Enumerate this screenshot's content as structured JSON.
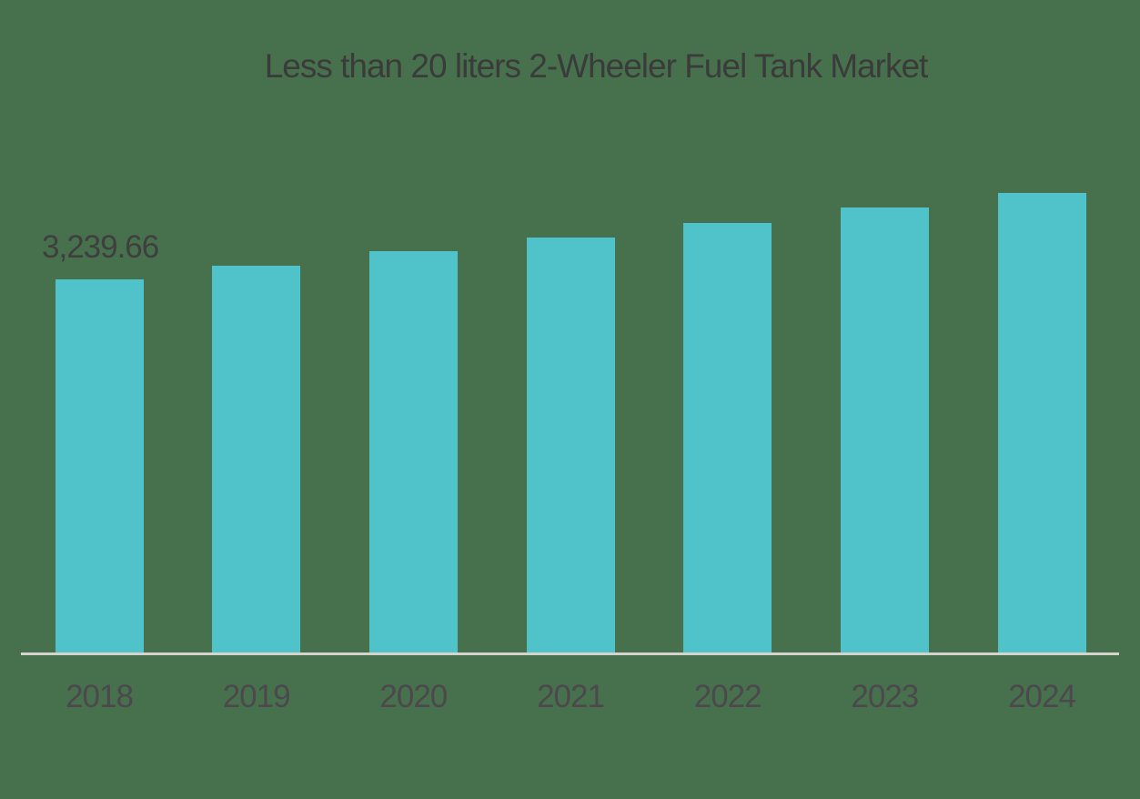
{
  "title": "Less than 20 liters 2-Wheeler Fuel Tank Market",
  "colors": {
    "background": "#47704d",
    "bar": "#50c2c9",
    "title_text": "#3b3b3b",
    "value_label_text": "#3f3f3f",
    "tick_text": "#4c484d",
    "axis_line": "#d5d4cc"
  },
  "chart_data": {
    "type": "bar",
    "title": "Less than 20 liters 2-Wheeler Fuel Tank Market",
    "xlabel": "",
    "ylabel": "",
    "categories": [
      "2018",
      "2019",
      "2020",
      "2021",
      "2022",
      "2023",
      "2024"
    ],
    "values": [
      3239.66,
      3357.9,
      3484.0,
      3602.3,
      3728.4,
      3862.4,
      3988.5
    ],
    "values_note": "Only the 2018 bar carries a printed value label; remaining values estimated proportionally from bar heights",
    "ylim": [
      0,
      4300
    ],
    "grid": false,
    "legend": false,
    "y_axis_visible": false,
    "annotations": [
      {
        "text": "3,239.66",
        "target_category": "2018",
        "position": "above-left of first bar"
      }
    ]
  }
}
